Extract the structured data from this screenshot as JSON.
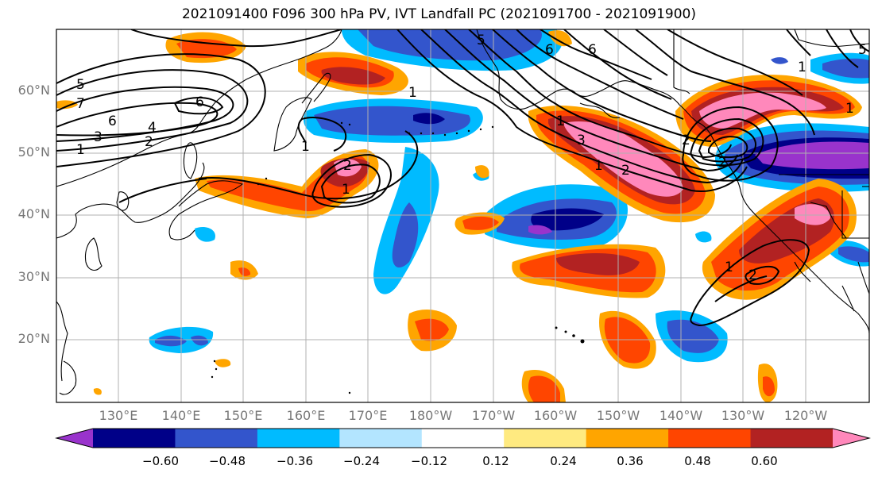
{
  "title": "2021091400 F096 300 hPa PV, IVT Landfall PC (2021091700 - 2021091900)",
  "lat_labels": [
    "60°N",
    "50°N",
    "40°N",
    "30°N",
    "20°N"
  ],
  "lon_labels": [
    "130°E",
    "140°E",
    "150°E",
    "160°E",
    "170°E",
    "180°W",
    "170°W",
    "160°W",
    "150°W",
    "140°W",
    "130°W",
    "120°W"
  ],
  "colorbar": {
    "colors": [
      "#9933cc",
      "#000088",
      "#3355cc",
      "#00bbff",
      "#b3e5ff",
      "#ffffff",
      "#ffea80",
      "#ffa500",
      "#ff4500",
      "#b22222",
      "#ff88bb"
    ],
    "tick_labels": [
      "−0.60",
      "−0.48",
      "−0.36",
      "−0.24",
      "−0.12",
      "0.12",
      "0.24",
      "0.36",
      "0.48",
      "0.60"
    ]
  },
  "contour_labels": [
    "5",
    "7",
    "6",
    "3",
    "1",
    "4",
    "2",
    "6",
    "1",
    "1",
    "2",
    "1",
    "5",
    "6",
    "3",
    "1",
    "2",
    "1",
    "1",
    "2",
    "2",
    "6",
    "5",
    "1",
    "1",
    "2"
  ]
}
